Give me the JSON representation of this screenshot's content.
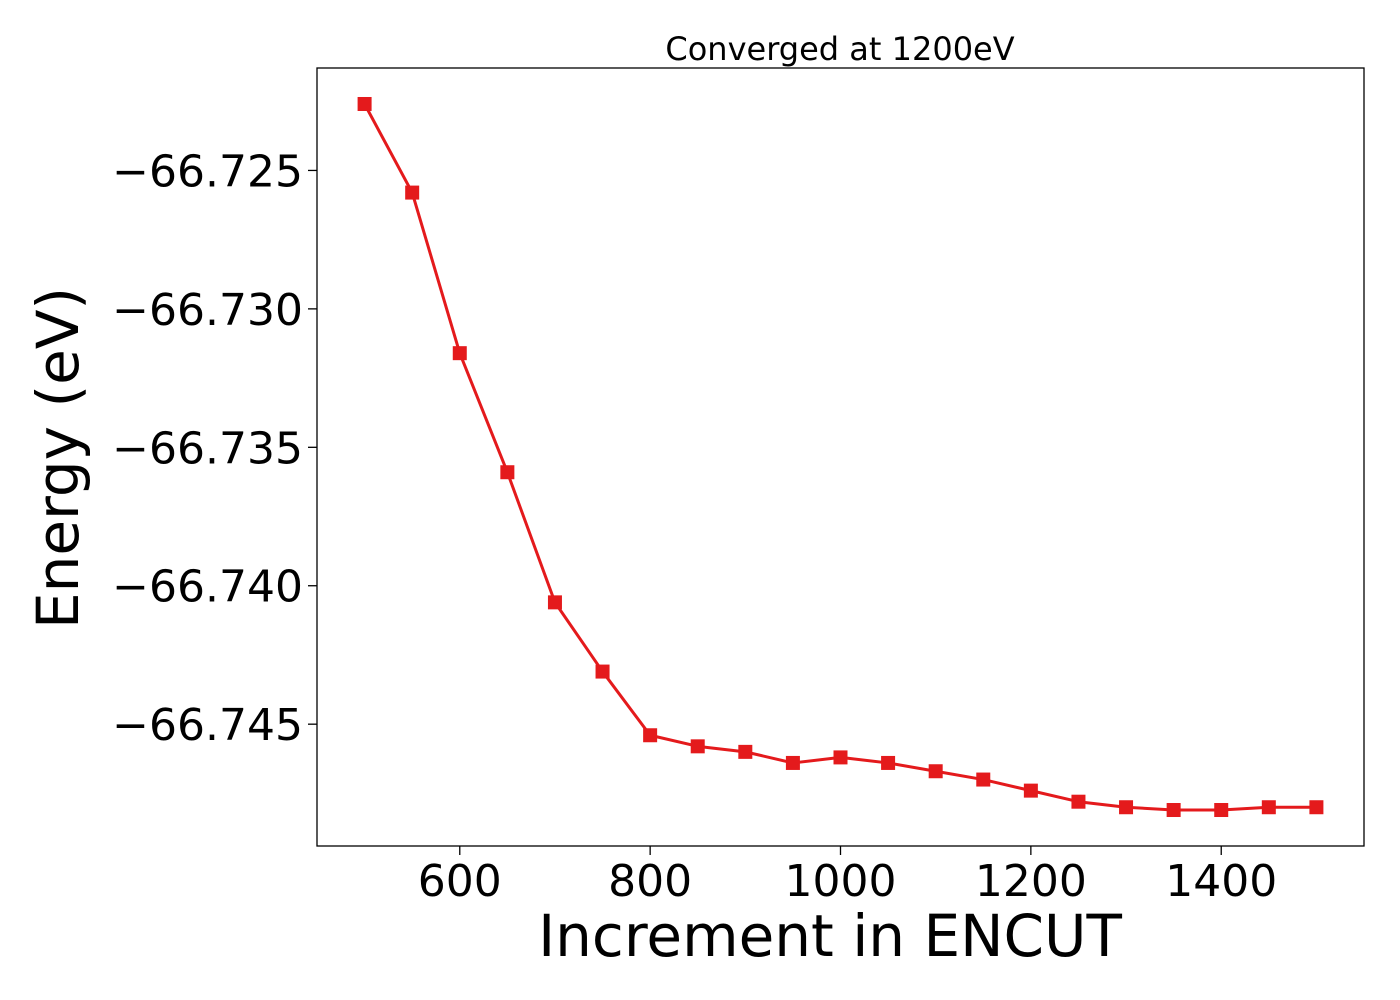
{
  "chart_data": {
    "type": "line",
    "title": "Converged at 1200eV",
    "xlabel": "Increment in ENCUT",
    "ylabel": "Energy (eV)",
    "xlim": [
      450,
      1550
    ],
    "ylim": [
      -66.7494,
      -66.7213
    ],
    "xticks": [
      600,
      800,
      1000,
      1200,
      1400
    ],
    "xtick_labels": [
      "600",
      "800",
      "1000",
      "1200",
      "1400"
    ],
    "yticks": [
      -66.725,
      -66.73,
      -66.735,
      -66.74,
      -66.745
    ],
    "ytick_labels": [
      "−66.725",
      "−66.730",
      "−66.735",
      "−66.740",
      "−66.745"
    ],
    "grid": false,
    "marker": "square",
    "color": "#e41a1c",
    "series": [
      {
        "x": [
          500,
          550,
          600,
          650,
          700,
          750,
          800,
          850,
          900,
          950,
          1000,
          1050,
          1100,
          1150,
          1200,
          1250,
          1300,
          1350,
          1400,
          1450,
          1500
        ],
        "y": [
          -66.7226,
          -66.7258,
          -66.7316,
          -66.7359,
          -66.7406,
          -66.7431,
          -66.7454,
          -66.7458,
          -66.746,
          -66.7464,
          -66.7462,
          -66.7464,
          -66.7467,
          -66.747,
          -66.7474,
          -66.7478,
          -66.748,
          -66.7481,
          -66.7481,
          -66.748,
          -66.748
        ]
      }
    ]
  }
}
